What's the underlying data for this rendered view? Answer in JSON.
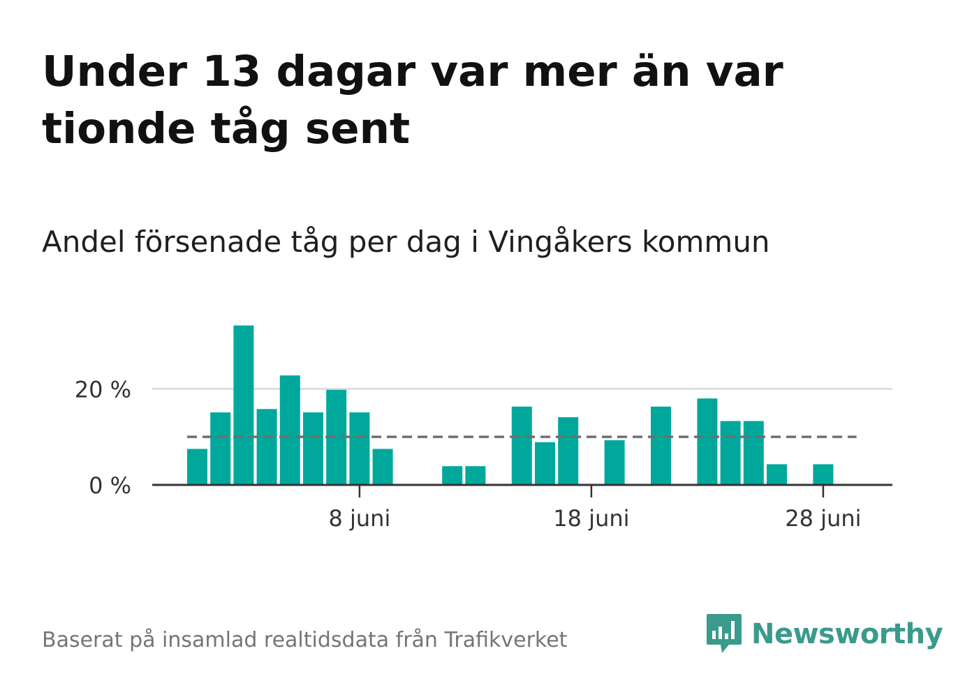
{
  "title": "Under 13 dagar var mer än var tionde tåg sent",
  "subtitle": "Andel försenade tåg per dag i Vingåkers kommun",
  "source": "Baserat på insamlad realtidsdata från Trafikverket",
  "logo": {
    "text": "Newsworthy",
    "icon": "newsworthy-chart-bubble-icon"
  },
  "colors": {
    "bar": "#00a89c",
    "reference_line": "#6f6f6f",
    "grid": "#dddddd",
    "axis": "#333333",
    "title": "#111111",
    "source": "#757575",
    "logo": "#3a9a8c"
  },
  "chart_data": {
    "type": "bar",
    "x_unit": "day of June",
    "x": [
      1,
      2,
      3,
      4,
      5,
      6,
      7,
      8,
      9,
      10,
      11,
      12,
      13,
      14,
      15,
      16,
      17,
      18,
      19,
      20,
      21,
      22,
      23,
      24,
      25,
      26,
      27,
      28,
      29
    ],
    "values": [
      7.5,
      15.1,
      33.2,
      15.8,
      22.8,
      15.1,
      19.8,
      15.1,
      7.5,
      null,
      null,
      3.9,
      3.9,
      null,
      16.3,
      8.9,
      14.1,
      null,
      9.3,
      null,
      16.3,
      null,
      18.0,
      13.3,
      13.3,
      4.3,
      null,
      4.3,
      null
    ],
    "value_suffix": " %",
    "ylim": [
      0,
      34
    ],
    "y_ticks": [
      {
        "value": 0,
        "label": "0 %"
      },
      {
        "value": 20,
        "label": "20 %"
      }
    ],
    "x_ticks": [
      {
        "value": 8,
        "label": "8 juni"
      },
      {
        "value": 18,
        "label": "18 juni"
      },
      {
        "value": 28,
        "label": "28 juni"
      }
    ],
    "reference_line": {
      "value": 10,
      "style": "dashed"
    },
    "grid": true,
    "xlabel": "",
    "ylabel": ""
  }
}
